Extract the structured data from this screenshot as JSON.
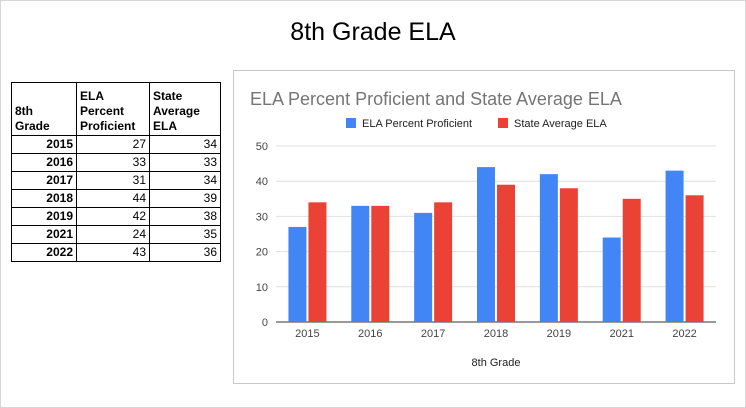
{
  "page": {
    "title": "8th Grade ELA"
  },
  "table": {
    "headers": [
      "8th\nGrade",
      "ELA\nPercent\nProficient",
      "State\nAverage\nELA"
    ],
    "rows": [
      [
        "2015",
        "27",
        "34"
      ],
      [
        "2016",
        "33",
        "33"
      ],
      [
        "2017",
        "31",
        "34"
      ],
      [
        "2018",
        "44",
        "39"
      ],
      [
        "2019",
        "42",
        "38"
      ],
      [
        "2021",
        "24",
        "35"
      ],
      [
        "2022",
        "43",
        "36"
      ]
    ]
  },
  "chart_data": {
    "type": "bar",
    "title": "ELA Percent Proficient and State Average ELA",
    "xlabel": "8th Grade",
    "ylabel": "",
    "categories": [
      "2015",
      "2016",
      "2017",
      "2018",
      "2019",
      "2021",
      "2022"
    ],
    "series": [
      {
        "name": "ELA Percent Proficient",
        "color": "#4285f4",
        "values": [
          27,
          33,
          31,
          44,
          42,
          24,
          43
        ]
      },
      {
        "name": "State Average ELA",
        "color": "#ea4335",
        "values": [
          34,
          33,
          34,
          39,
          38,
          35,
          36
        ]
      }
    ],
    "ylim": [
      0,
      50
    ],
    "yticks": [
      "0",
      "10",
      "20",
      "30",
      "40",
      "50"
    ],
    "grid": true,
    "legend": "top"
  }
}
